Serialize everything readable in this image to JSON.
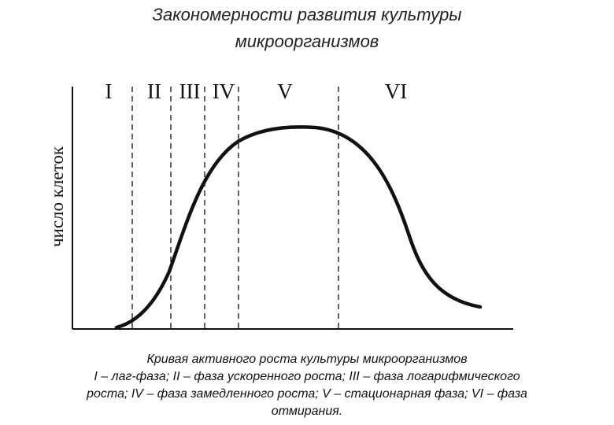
{
  "title": {
    "line1": "Закономерности развития культуры",
    "line2": "микроорганизмов"
  },
  "y_axis_label": "число клеток",
  "phases": [
    {
      "label": "I"
    },
    {
      "label": "II"
    },
    {
      "label": "III"
    },
    {
      "label": "IV"
    },
    {
      "label": "V"
    },
    {
      "label": "VI"
    }
  ],
  "caption": {
    "line1": "Кривая активного роста культуры микроорганизмов",
    "line2": "I – лаг-фаза; II – фаза ускоренного роста; III – фаза логарифмического",
    "line3": "роста; IV – фаза замедленного роста; V – стационарная фаза; VI – фаза",
    "line4": "отмирания."
  }
}
